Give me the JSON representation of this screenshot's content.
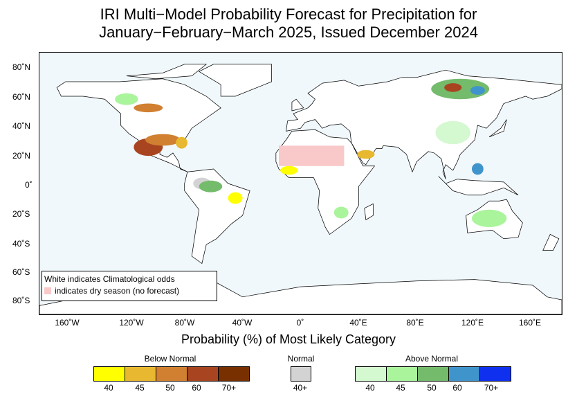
{
  "title": {
    "line1": "IRI Multi−Model Probability Forecast for Precipitation for",
    "line2": "January−February−March 2025, Issued December 2024"
  },
  "axes": {
    "lat_labels": [
      "80˚N",
      "60˚N",
      "40˚N",
      "20˚N",
      "0˚",
      "20˚S",
      "40˚S",
      "60˚S",
      "80˚S"
    ],
    "lon_labels": [
      "160˚W",
      "120˚W",
      "80˚W",
      "40˚W",
      "0˚",
      "40˚E",
      "80˚E",
      "120˚E",
      "160˚E"
    ],
    "xtitle": "Probability (%) of Most Likely Category"
  },
  "note": {
    "line1": "White indicates Climatological odds",
    "line2": "indicates dry season (no forecast)"
  },
  "legend": {
    "below": {
      "label": "Below Normal",
      "ticks": [
        "40",
        "45",
        "50",
        "60",
        "70+"
      ],
      "colors": [
        "#ffff00",
        "#e8b830",
        "#d08030",
        "#a84520",
        "#783000"
      ]
    },
    "normal": {
      "label": "Normal",
      "ticks": [
        "40+"
      ],
      "colors": [
        "#d3d3d3"
      ]
    },
    "above": {
      "label": "Above Normal",
      "ticks": [
        "40",
        "45",
        "50",
        "60",
        "70+"
      ],
      "colors": [
        "#d4f8d0",
        "#aaf49c",
        "#74bb6c",
        "#4094cc",
        "#1030f0"
      ]
    },
    "dry_season_color": "#f9c8c8"
  }
}
